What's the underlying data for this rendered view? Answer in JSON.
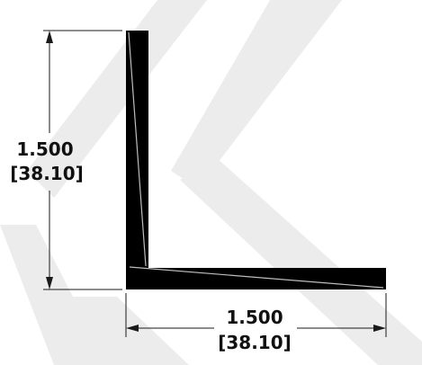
{
  "drawing": {
    "vertical_dimension": {
      "value": "1.500",
      "metric": "[38.10]"
    },
    "horizontal_dimension": {
      "value": "1.500",
      "metric": "[38.10]"
    },
    "colors": {
      "profile": "#000000",
      "watermark": "#ececec",
      "dimension_lines": "#1a1a1a"
    }
  }
}
